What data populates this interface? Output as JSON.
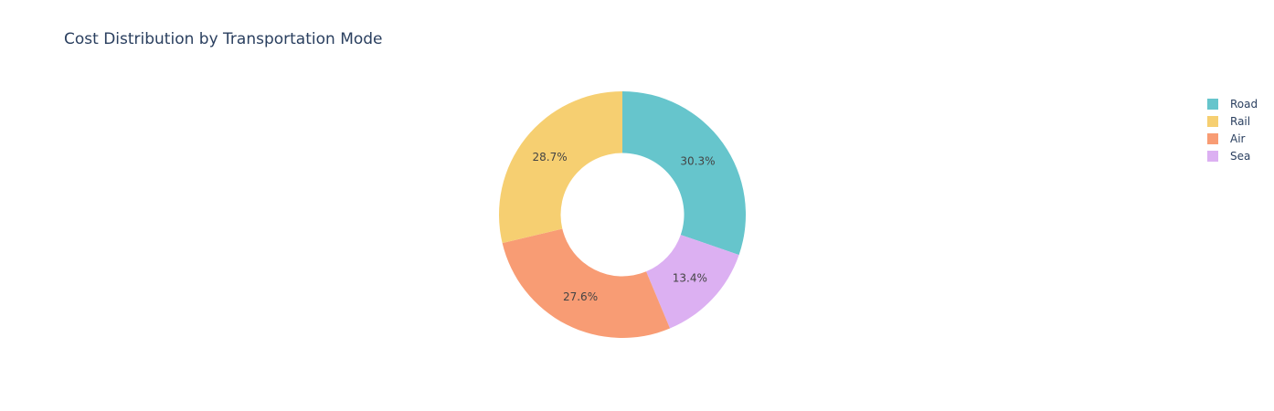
{
  "chart_data": {
    "type": "pie",
    "title": "Cost Distribution by Transportation Mode",
    "hole": 0.5,
    "direction": "clockwise",
    "start_angle_deg": 0,
    "legend_position": "top-right",
    "slices": [
      {
        "label": "Road",
        "value": 30.3,
        "text": "30.3%",
        "color": "#66C5CC"
      },
      {
        "label": "Sea",
        "value": 13.4,
        "text": "13.4%",
        "color": "#DCB0F2"
      },
      {
        "label": "Air",
        "value": 27.6,
        "text": "27.6%",
        "color": "#F89C74"
      },
      {
        "label": "Rail",
        "value": 28.7,
        "text": "28.7%",
        "color": "#F6CF71"
      }
    ],
    "legend": [
      "Road",
      "Rail",
      "Air",
      "Sea"
    ]
  }
}
